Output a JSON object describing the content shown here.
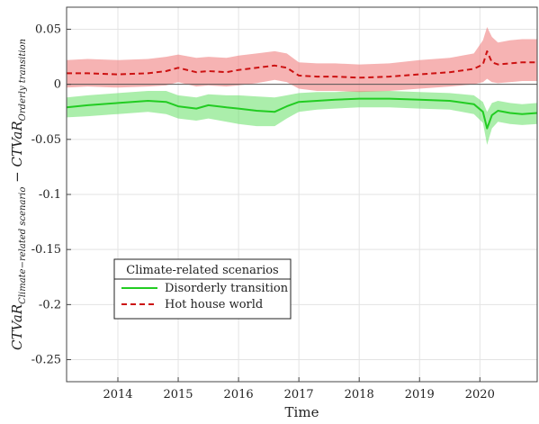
{
  "chart_data": {
    "type": "line",
    "xlabel": "Time",
    "ylabel": {
      "main_a": "CTVaR",
      "sub_a": "Climate−related scenario",
      "minus": " − ",
      "main_b": "CTVaR",
      "sub_b": "Orderly transition"
    },
    "xlim": [
      2013.15,
      2020.95
    ],
    "ylim": [
      -0.27,
      0.07
    ],
    "xticks": [
      2014,
      2015,
      2016,
      2017,
      2018,
      2019,
      2020
    ],
    "xtick_labels": [
      "2014",
      "2015",
      "2016",
      "2017",
      "2018",
      "2019",
      "2020"
    ],
    "yticks": [
      -0.25,
      -0.2,
      -0.15,
      -0.1,
      -0.05,
      0,
      0.05
    ],
    "ytick_labels": [
      "-0.25",
      "-0.2",
      "-0.15",
      "-0.1",
      "-0.05",
      "0",
      "0.05"
    ],
    "grid": true,
    "zero_line": true,
    "legend": {
      "title": "Climate-related scenarios",
      "placement": "lower-left"
    },
    "series": [
      {
        "name": "Disorderly transition",
        "style": "solid",
        "color": "#22cc22",
        "band_color": "#66e066",
        "x": [
          2013.15,
          2013.5,
          2014.0,
          2014.5,
          2014.8,
          2015.0,
          2015.3,
          2015.5,
          2015.8,
          2016.0,
          2016.3,
          2016.6,
          2016.8,
          2017.0,
          2017.3,
          2017.6,
          2018.0,
          2018.5,
          2019.0,
          2019.5,
          2019.9,
          2020.05,
          2020.12,
          2020.2,
          2020.3,
          2020.5,
          2020.7,
          2020.95
        ],
        "y": [
          -0.021,
          -0.019,
          -0.017,
          -0.015,
          -0.016,
          -0.02,
          -0.022,
          -0.019,
          -0.021,
          -0.022,
          -0.024,
          -0.025,
          -0.02,
          -0.016,
          -0.015,
          -0.014,
          -0.013,
          -0.013,
          -0.014,
          -0.015,
          -0.018,
          -0.025,
          -0.04,
          -0.028,
          -0.024,
          -0.026,
          -0.027,
          -0.026
        ],
        "lower": [
          -0.03,
          -0.029,
          -0.027,
          -0.025,
          -0.027,
          -0.031,
          -0.033,
          -0.031,
          -0.034,
          -0.036,
          -0.038,
          -0.038,
          -0.031,
          -0.025,
          -0.023,
          -0.022,
          -0.021,
          -0.021,
          -0.022,
          -0.023,
          -0.027,
          -0.035,
          -0.055,
          -0.04,
          -0.034,
          -0.036,
          -0.037,
          -0.036
        ],
        "upper": [
          -0.012,
          -0.01,
          -0.008,
          -0.006,
          -0.006,
          -0.01,
          -0.012,
          -0.009,
          -0.01,
          -0.01,
          -0.011,
          -0.012,
          -0.01,
          -0.008,
          -0.007,
          -0.007,
          -0.006,
          -0.006,
          -0.007,
          -0.008,
          -0.01,
          -0.016,
          -0.025,
          -0.017,
          -0.015,
          -0.017,
          -0.018,
          -0.017
        ]
      },
      {
        "name": "Hot house world",
        "style": "dashed",
        "color": "#cc1111",
        "band_color": "#f08080",
        "x": [
          2013.15,
          2013.5,
          2014.0,
          2014.5,
          2014.8,
          2015.0,
          2015.3,
          2015.5,
          2015.8,
          2016.0,
          2016.3,
          2016.6,
          2016.8,
          2017.0,
          2017.3,
          2017.6,
          2018.0,
          2018.5,
          2019.0,
          2019.5,
          2019.9,
          2020.05,
          2020.12,
          2020.2,
          2020.3,
          2020.5,
          2020.7,
          2020.95
        ],
        "y": [
          0.01,
          0.01,
          0.009,
          0.01,
          0.012,
          0.015,
          0.011,
          0.012,
          0.011,
          0.013,
          0.015,
          0.017,
          0.015,
          0.008,
          0.007,
          0.007,
          0.006,
          0.007,
          0.009,
          0.011,
          0.014,
          0.018,
          0.03,
          0.02,
          0.018,
          0.019,
          0.02,
          0.02
        ],
        "lower": [
          -0.003,
          -0.002,
          -0.003,
          -0.002,
          -0.001,
          0.002,
          -0.002,
          -0.001,
          -0.002,
          -0.001,
          0.001,
          0.004,
          0.002,
          -0.004,
          -0.006,
          -0.006,
          -0.007,
          -0.006,
          -0.004,
          -0.002,
          0.0,
          0.002,
          0.005,
          0.002,
          0.001,
          0.002,
          0.003,
          0.003
        ],
        "upper": [
          0.022,
          0.023,
          0.022,
          0.023,
          0.025,
          0.027,
          0.024,
          0.025,
          0.024,
          0.026,
          0.028,
          0.03,
          0.028,
          0.02,
          0.019,
          0.019,
          0.018,
          0.019,
          0.022,
          0.024,
          0.028,
          0.04,
          0.052,
          0.043,
          0.038,
          0.04,
          0.041,
          0.041
        ]
      }
    ]
  }
}
